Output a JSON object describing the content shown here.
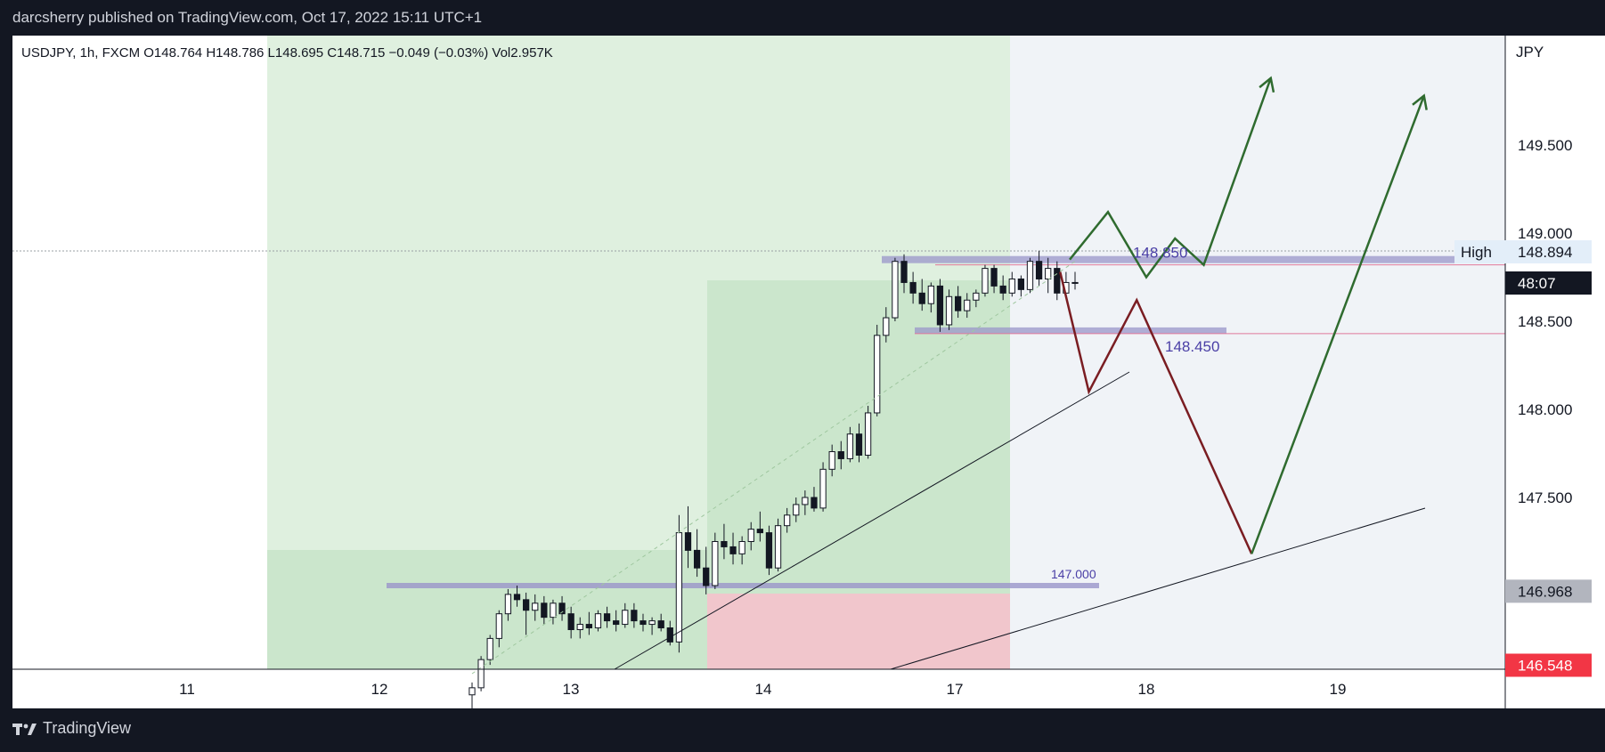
{
  "header": {
    "title": "darcsherry published on TradingView.com, Oct 17, 2022 15:11 UTC+1"
  },
  "legend": {
    "text": "USDJPY, 1h, FXCM  O148.764  H148.786  L148.695  C148.715  −0.049 (−0.03%)  Vol2.957K"
  },
  "footer": {
    "brand": "TradingView"
  },
  "colors": {
    "green_line": "#2f6b2f",
    "red_line": "#7a1d22",
    "zone_purple": "#9a95c9",
    "level_pink": "#e0789a",
    "price_text": "#4a3fa6",
    "sl_zone": "#f0b4bd",
    "tp_zone": "#c8e6c9"
  },
  "chart_data": {
    "type": "candlestick",
    "symbol": "USDJPY",
    "interval": "1h",
    "broker": "FXCM",
    "price_axis_label": "JPY",
    "x_ticks": [
      "11",
      "12",
      "13",
      "14",
      "17",
      "18",
      "19"
    ],
    "y_ticks": [
      "149.500",
      "149.000",
      "148.500",
      "148.000",
      "147.500"
    ],
    "y_range": [
      146.4,
      150.2
    ],
    "last_ohlc": {
      "open": 148.764,
      "high": 148.786,
      "low": 148.695,
      "close": 148.715,
      "change": -0.049,
      "change_pct": "-0.03%",
      "volume": "2.957K"
    },
    "price_labels": [
      {
        "text": "148.894",
        "price": 148.894,
        "style": "high"
      },
      {
        "text": "48:07",
        "price": 148.72,
        "style": "countdown"
      },
      {
        "text": "146.968",
        "price": 146.968,
        "style": "grey"
      },
      {
        "text": "146.548",
        "price": 146.548,
        "style": "red"
      }
    ],
    "high_tag": "High",
    "levels": [
      {
        "text": "148.850",
        "price": 148.85
      },
      {
        "text": "148.450",
        "price": 148.45
      },
      {
        "text": "147.000",
        "price": 147.0
      }
    ],
    "trendlines": [
      {
        "from": [
          "13.25",
          146.4
        ],
        "to": [
          "17.9",
          148.2
        ]
      },
      {
        "from": [
          "16.7",
          146.4
        ],
        "to": [
          "19.45",
          147.45
        ]
      }
    ],
    "candles": [
      [
        146.38,
        146.45,
        146.3,
        146.42
      ],
      [
        146.42,
        146.6,
        146.4,
        146.58
      ],
      [
        146.58,
        146.72,
        146.55,
        146.7
      ],
      [
        146.7,
        146.86,
        146.65,
        146.84
      ],
      [
        146.84,
        146.98,
        146.8,
        146.95
      ],
      [
        146.95,
        147.0,
        146.88,
        146.92
      ],
      [
        146.92,
        146.96,
        146.72,
        146.86
      ],
      [
        146.86,
        146.95,
        146.8,
        146.9
      ],
      [
        146.9,
        146.94,
        146.78,
        146.82
      ],
      [
        146.82,
        146.92,
        146.78,
        146.9
      ],
      [
        146.9,
        146.94,
        146.8,
        146.84
      ],
      [
        146.84,
        146.88,
        146.7,
        146.75
      ],
      [
        146.75,
        146.82,
        146.7,
        146.78
      ],
      [
        146.78,
        146.85,
        146.72,
        146.76
      ],
      [
        146.76,
        146.86,
        146.74,
        146.84
      ],
      [
        146.84,
        146.88,
        146.76,
        146.8
      ],
      [
        146.8,
        146.86,
        146.74,
        146.78
      ],
      [
        146.78,
        146.9,
        146.76,
        146.86
      ],
      [
        146.86,
        146.9,
        146.76,
        146.8
      ],
      [
        146.8,
        146.84,
        146.74,
        146.78
      ],
      [
        146.78,
        146.82,
        146.72,
        146.8
      ],
      [
        146.8,
        146.84,
        146.74,
        146.76
      ],
      [
        146.76,
        146.8,
        146.66,
        146.68
      ],
      [
        146.68,
        147.4,
        146.62,
        147.3
      ],
      [
        147.3,
        147.45,
        147.1,
        147.2
      ],
      [
        147.2,
        147.32,
        147.05,
        147.1
      ],
      [
        147.1,
        147.22,
        146.95,
        147.0
      ],
      [
        147.0,
        147.3,
        146.98,
        147.25
      ],
      [
        147.25,
        147.35,
        147.15,
        147.22
      ],
      [
        147.22,
        147.3,
        147.12,
        147.18
      ],
      [
        147.18,
        147.28,
        147.12,
        147.25
      ],
      [
        147.25,
        147.36,
        147.2,
        147.32
      ],
      [
        147.32,
        147.42,
        147.25,
        147.3
      ],
      [
        147.3,
        147.34,
        147.06,
        147.1
      ],
      [
        147.1,
        147.38,
        147.08,
        147.34
      ],
      [
        147.34,
        147.44,
        147.3,
        147.4
      ],
      [
        147.4,
        147.5,
        147.36,
        147.46
      ],
      [
        147.46,
        147.54,
        147.4,
        147.5
      ],
      [
        147.5,
        147.56,
        147.42,
        147.44
      ],
      [
        147.44,
        147.7,
        147.42,
        147.66
      ],
      [
        147.66,
        147.8,
        147.62,
        147.76
      ],
      [
        147.76,
        147.82,
        147.66,
        147.72
      ],
      [
        147.72,
        147.9,
        147.7,
        147.86
      ],
      [
        147.86,
        147.92,
        147.7,
        147.74
      ],
      [
        147.74,
        148.02,
        147.72,
        147.98
      ],
      [
        147.98,
        148.48,
        147.96,
        148.42
      ],
      [
        148.42,
        148.58,
        148.38,
        148.52
      ],
      [
        148.52,
        148.86,
        148.5,
        148.84
      ],
      [
        148.84,
        148.88,
        148.66,
        148.72
      ],
      [
        148.72,
        148.78,
        148.6,
        148.66
      ],
      [
        148.66,
        148.74,
        148.56,
        148.6
      ],
      [
        148.6,
        148.72,
        148.55,
        148.7
      ],
      [
        148.7,
        148.74,
        148.44,
        148.48
      ],
      [
        148.48,
        148.68,
        148.45,
        148.64
      ],
      [
        148.64,
        148.7,
        148.52,
        148.56
      ],
      [
        148.56,
        148.66,
        148.52,
        148.62
      ],
      [
        148.62,
        148.68,
        148.58,
        148.66
      ],
      [
        148.66,
        148.82,
        148.64,
        148.8
      ],
      [
        148.8,
        148.82,
        148.66,
        148.7
      ],
      [
        148.7,
        148.76,
        148.62,
        148.66
      ],
      [
        148.66,
        148.78,
        148.64,
        148.74
      ],
      [
        148.74,
        148.76,
        148.64,
        148.68
      ],
      [
        148.68,
        148.86,
        148.66,
        148.84
      ],
      [
        148.84,
        148.9,
        148.7,
        148.74
      ],
      [
        148.74,
        148.86,
        148.66,
        148.8
      ],
      [
        148.8,
        148.84,
        148.62,
        148.66
      ],
      [
        148.66,
        148.78,
        148.64,
        148.72
      ],
      [
        148.72,
        148.78,
        148.68,
        148.72
      ]
    ],
    "projections": {
      "bullish_path": [
        [
          "17.6",
          148.85
        ],
        [
          "17.8",
          149.12
        ],
        [
          "18.0",
          148.75
        ],
        [
          "18.15",
          148.97
        ],
        [
          "18.3",
          148.82
        ],
        [
          "18.65",
          149.88
        ]
      ],
      "bearish_path": [
        [
          "17.55",
          148.78
        ],
        [
          "17.7",
          148.1
        ],
        [
          "17.95",
          148.62
        ],
        [
          "18.55",
          147.18
        ]
      ],
      "second_bullish": [
        [
          "18.55",
          147.18
        ],
        [
          "19.45",
          149.78
        ]
      ]
    }
  }
}
